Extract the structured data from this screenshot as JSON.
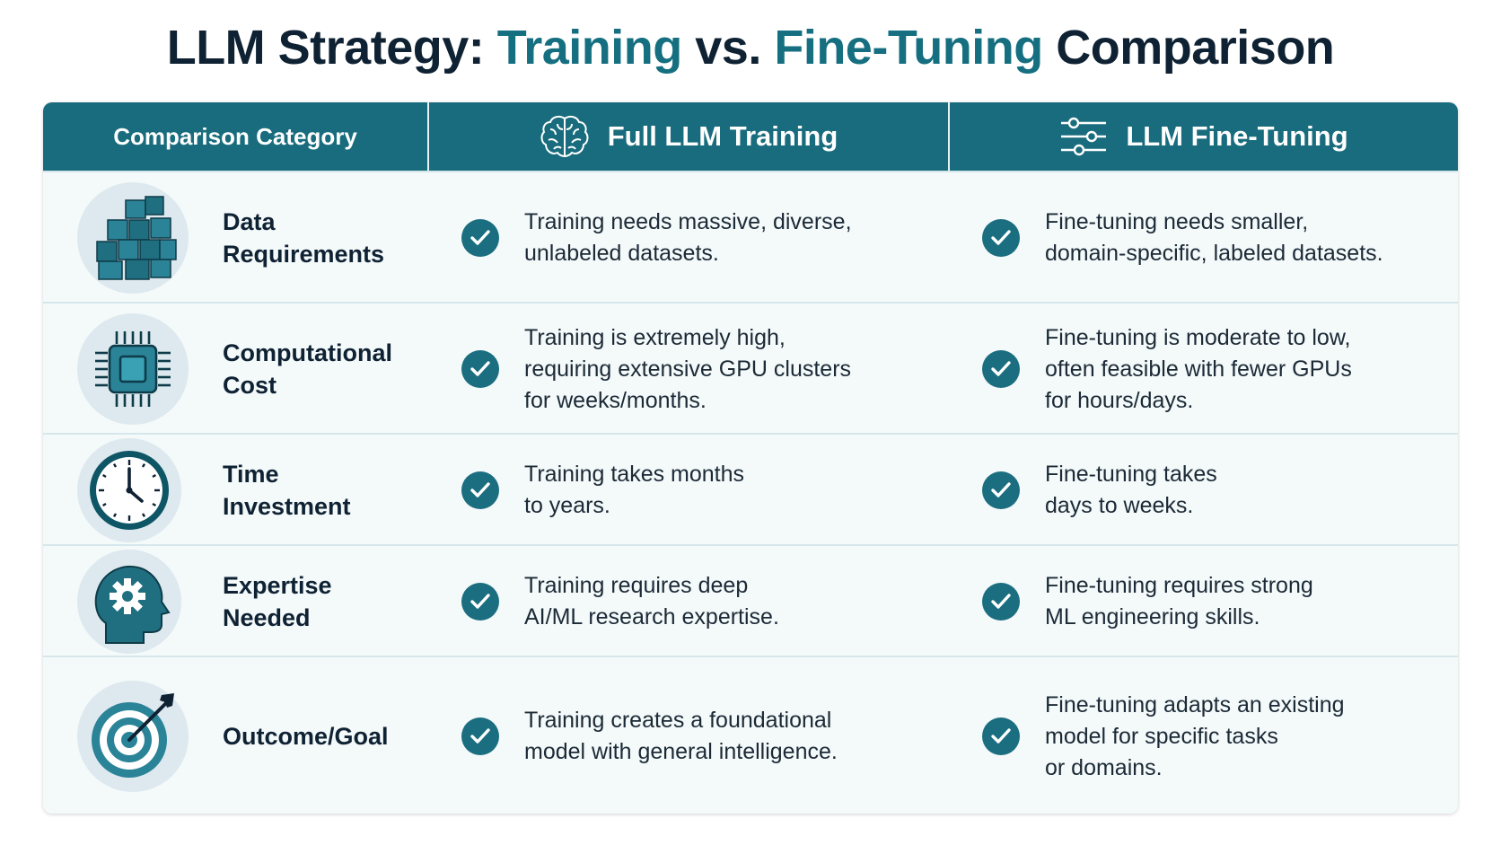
{
  "title": {
    "part1": "LLM Strategy: ",
    "part2": "Training",
    "part3": " vs. ",
    "part4": "Fine-Tuning",
    "part5": " Comparison"
  },
  "header": {
    "category": "Comparison Category",
    "training": "Full LLM Training",
    "finetuning": "LLM Fine-Tuning",
    "training_icon": "brain-icon",
    "finetuning_icon": "sliders-icon"
  },
  "rows": [
    {
      "category": "Data\nRequirements",
      "icon": "cubes-icon",
      "training": "Training needs massive, diverse,\nunlabeled datasets.",
      "finetuning": "Fine-tuning needs smaller,\ndomain-specific, labeled datasets."
    },
    {
      "category": "Computational\nCost",
      "icon": "chip-icon",
      "training": "Training is extremely high,\nrequiring extensive GPU clusters\nfor weeks/months.",
      "finetuning": "Fine-tuning is moderate to low,\noften feasible with fewer GPUs\nfor hours/days."
    },
    {
      "category": "Time\nInvestment",
      "icon": "clock-icon",
      "training": "Training takes months\nto years.",
      "finetuning": "Fine-tuning takes\ndays to weeks."
    },
    {
      "category": "Expertise\nNeeded",
      "icon": "head-gear-icon",
      "training": "Training requires deep\nAI/ML research expertise.",
      "finetuning": "Fine-tuning requires strong\nML engineering skills."
    },
    {
      "category": "Outcome/Goal",
      "icon": "target-icon",
      "training": "Training creates a foundational\nmodel with general intelligence.",
      "finetuning": "Fine-tuning adapts an existing\nmodel for specific tasks\nor domains."
    }
  ],
  "colors": {
    "accent": "#186c7d",
    "title": "#0f2233",
    "highlight": "#156f80"
  }
}
